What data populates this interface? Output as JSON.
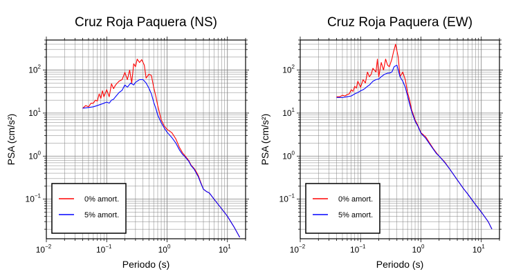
{
  "chart_data": [
    {
      "type": "line",
      "title": "Cruz Roja Paquera (NS)",
      "xlabel": "Periodo (s)",
      "ylabel": "PSA (cm/s²)",
      "xscale": "log",
      "yscale": "log",
      "xlim": [
        0.01,
        20
      ],
      "ylim": [
        0.012,
        500
      ],
      "x_ticks": [
        {
          "base": "10",
          "exp": "−2"
        },
        {
          "base": "10",
          "exp": "−1"
        },
        {
          "base": "10",
          "exp": "0"
        },
        {
          "base": "10",
          "exp": "1"
        }
      ],
      "y_ticks": [
        {
          "base": "10",
          "exp": "−1"
        },
        {
          "base": "10",
          "exp": "0"
        },
        {
          "base": "10",
          "exp": "1"
        },
        {
          "base": "10",
          "exp": "2"
        }
      ],
      "grid": true,
      "legend": "bottom-left",
      "series": [
        {
          "name": "0% amort.",
          "color": "#ff0000",
          "points": [
            [
              0.04,
              13
            ],
            [
              0.045,
              15
            ],
            [
              0.05,
              14
            ],
            [
              0.055,
              17
            ],
            [
              0.06,
              17
            ],
            [
              0.065,
              20
            ],
            [
              0.07,
              19
            ],
            [
              0.075,
              28
            ],
            [
              0.08,
              22
            ],
            [
              0.085,
              33
            ],
            [
              0.09,
              24
            ],
            [
              0.1,
              35
            ],
            [
              0.11,
              24
            ],
            [
              0.12,
              48
            ],
            [
              0.13,
              37
            ],
            [
              0.14,
              45
            ],
            [
              0.16,
              55
            ],
            [
              0.18,
              60
            ],
            [
              0.2,
              88
            ],
            [
              0.22,
              60
            ],
            [
              0.24,
              100
            ],
            [
              0.26,
              50
            ],
            [
              0.28,
              140
            ],
            [
              0.3,
              120
            ],
            [
              0.32,
              180
            ],
            [
              0.35,
              150
            ],
            [
              0.38,
              175
            ],
            [
              0.42,
              130
            ],
            [
              0.45,
              65
            ],
            [
              0.5,
              80
            ],
            [
              0.55,
              75
            ],
            [
              0.6,
              40
            ],
            [
              0.65,
              25
            ],
            [
              0.7,
              15
            ],
            [
              0.8,
              7
            ],
            [
              0.9,
              5
            ],
            [
              1.0,
              4.2
            ],
            [
              1.2,
              3.5
            ],
            [
              1.4,
              2.5
            ],
            [
              1.6,
              1.6
            ],
            [
              1.8,
              1.2
            ],
            [
              2.0,
              1.0
            ],
            [
              2.3,
              0.78
            ],
            [
              2.5,
              0.62
            ],
            [
              2.8,
              0.52
            ],
            [
              3.0,
              0.45
            ],
            [
              3.3,
              0.35
            ],
            [
              3.6,
              0.25
            ],
            [
              4.0,
              0.17
            ],
            [
              4.5,
              0.15
            ],
            [
              5.0,
              0.14
            ],
            [
              6.0,
              0.1
            ],
            [
              8.0,
              0.06
            ],
            [
              10,
              0.04
            ],
            [
              13,
              0.022
            ],
            [
              16,
              0.013
            ]
          ]
        },
        {
          "name": "5% amort.",
          "color": "#0000ff",
          "points": [
            [
              0.04,
              13
            ],
            [
              0.05,
              13.5
            ],
            [
              0.06,
              14
            ],
            [
              0.07,
              15
            ],
            [
              0.08,
              16
            ],
            [
              0.09,
              17
            ],
            [
              0.1,
              18
            ],
            [
              0.11,
              17
            ],
            [
              0.12,
              20
            ],
            [
              0.13,
              21
            ],
            [
              0.14,
              24
            ],
            [
              0.16,
              30
            ],
            [
              0.18,
              34
            ],
            [
              0.2,
              45
            ],
            [
              0.22,
              40
            ],
            [
              0.25,
              50
            ],
            [
              0.28,
              45
            ],
            [
              0.3,
              52
            ],
            [
              0.35,
              60
            ],
            [
              0.4,
              60
            ],
            [
              0.45,
              50
            ],
            [
              0.5,
              38
            ],
            [
              0.55,
              28
            ],
            [
              0.6,
              18
            ],
            [
              0.65,
              13
            ],
            [
              0.7,
              9
            ],
            [
              0.8,
              6
            ],
            [
              0.9,
              4.5
            ],
            [
              1.0,
              3.6
            ],
            [
              1.2,
              2.7
            ],
            [
              1.4,
              2.0
            ],
            [
              1.6,
              1.4
            ],
            [
              1.8,
              1.1
            ],
            [
              2.0,
              0.95
            ],
            [
              2.3,
              0.75
            ],
            [
              2.5,
              0.6
            ],
            [
              2.8,
              0.5
            ],
            [
              3.0,
              0.42
            ],
            [
              3.3,
              0.33
            ],
            [
              3.6,
              0.24
            ],
            [
              4.0,
              0.17
            ],
            [
              4.5,
              0.15
            ],
            [
              5.0,
              0.14
            ],
            [
              6.0,
              0.1
            ],
            [
              8.0,
              0.06
            ],
            [
              10,
              0.04
            ],
            [
              13,
              0.022
            ],
            [
              16,
              0.013
            ]
          ]
        }
      ]
    },
    {
      "type": "line",
      "title": "Cruz Roja Paquera (EW)",
      "xlabel": "Periodo (s)",
      "ylabel": "PSA (cm/s²)",
      "xscale": "log",
      "yscale": "log",
      "xlim": [
        0.01,
        20
      ],
      "ylim": [
        0.012,
        500
      ],
      "x_ticks": [
        {
          "base": "10",
          "exp": "−2"
        },
        {
          "base": "10",
          "exp": "−1"
        },
        {
          "base": "10",
          "exp": "0"
        },
        {
          "base": "10",
          "exp": "1"
        }
      ],
      "y_ticks": [
        {
          "base": "10",
          "exp": "−1"
        },
        {
          "base": "10",
          "exp": "0"
        },
        {
          "base": "10",
          "exp": "1"
        },
        {
          "base": "10",
          "exp": "2"
        }
      ],
      "grid": true,
      "legend": "bottom-left",
      "series": [
        {
          "name": "0% amort.",
          "color": "#ff0000",
          "points": [
            [
              0.04,
              24
            ],
            [
              0.045,
              24
            ],
            [
              0.05,
              26
            ],
            [
              0.055,
              25
            ],
            [
              0.06,
              27
            ],
            [
              0.065,
              28
            ],
            [
              0.07,
              35
            ],
            [
              0.075,
              32
            ],
            [
              0.08,
              42
            ],
            [
              0.085,
              38
            ],
            [
              0.09,
              55
            ],
            [
              0.1,
              40
            ],
            [
              0.11,
              60
            ],
            [
              0.12,
              50
            ],
            [
              0.13,
              90
            ],
            [
              0.14,
              70
            ],
            [
              0.15,
              80
            ],
            [
              0.16,
              110
            ],
            [
              0.18,
              90
            ],
            [
              0.19,
              180
            ],
            [
              0.2,
              70
            ],
            [
              0.22,
              150
            ],
            [
              0.24,
              100
            ],
            [
              0.26,
              180
            ],
            [
              0.28,
              130
            ],
            [
              0.3,
              120
            ],
            [
              0.33,
              180
            ],
            [
              0.35,
              260
            ],
            [
              0.38,
              400
            ],
            [
              0.42,
              200
            ],
            [
              0.45,
              70
            ],
            [
              0.5,
              90
            ],
            [
              0.55,
              60
            ],
            [
              0.6,
              30
            ],
            [
              0.65,
              20
            ],
            [
              0.7,
              12
            ],
            [
              0.8,
              7
            ],
            [
              0.9,
              5
            ],
            [
              1.0,
              3.5
            ],
            [
              1.2,
              2.8
            ],
            [
              1.4,
              2.0
            ],
            [
              1.6,
              1.5
            ],
            [
              1.8,
              1.2
            ],
            [
              2.0,
              1.0
            ],
            [
              2.5,
              0.72
            ],
            [
              3.0,
              0.5
            ],
            [
              4.0,
              0.28
            ],
            [
              5.0,
              0.18
            ],
            [
              6.0,
              0.13
            ],
            [
              8.0,
              0.075
            ],
            [
              10,
              0.05
            ],
            [
              13,
              0.03
            ],
            [
              15,
              0.02
            ]
          ]
        },
        {
          "name": "5% amort.",
          "color": "#0000ff",
          "points": [
            [
              0.04,
              23
            ],
            [
              0.05,
              23
            ],
            [
              0.06,
              24
            ],
            [
              0.07,
              25
            ],
            [
              0.08,
              28
            ],
            [
              0.09,
              30
            ],
            [
              0.1,
              33
            ],
            [
              0.11,
              35
            ],
            [
              0.12,
              38
            ],
            [
              0.13,
              42
            ],
            [
              0.14,
              45
            ],
            [
              0.16,
              55
            ],
            [
              0.18,
              60
            ],
            [
              0.2,
              62
            ],
            [
              0.22,
              70
            ],
            [
              0.25,
              80
            ],
            [
              0.28,
              85
            ],
            [
              0.3,
              85
            ],
            [
              0.33,
              90
            ],
            [
              0.36,
              120
            ],
            [
              0.4,
              130
            ],
            [
              0.45,
              70
            ],
            [
              0.5,
              55
            ],
            [
              0.55,
              40
            ],
            [
              0.6,
              25
            ],
            [
              0.65,
              16
            ],
            [
              0.7,
              11
            ],
            [
              0.8,
              6.5
            ],
            [
              0.9,
              4.8
            ],
            [
              1.0,
              3.4
            ],
            [
              1.2,
              2.6
            ],
            [
              1.4,
              1.9
            ],
            [
              1.6,
              1.45
            ],
            [
              1.8,
              1.15
            ],
            [
              2.0,
              1.0
            ],
            [
              2.5,
              0.7
            ],
            [
              3.0,
              0.5
            ],
            [
              4.0,
              0.28
            ],
            [
              5.0,
              0.18
            ],
            [
              6.0,
              0.13
            ],
            [
              8.0,
              0.075
            ],
            [
              10,
              0.05
            ],
            [
              13,
              0.03
            ],
            [
              15,
              0.02
            ]
          ]
        }
      ]
    }
  ]
}
